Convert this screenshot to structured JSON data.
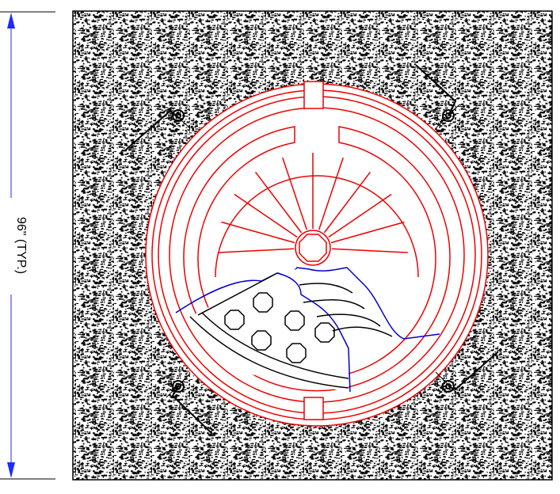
{
  "dimension": {
    "label": "96\" (TYP.)"
  }
}
